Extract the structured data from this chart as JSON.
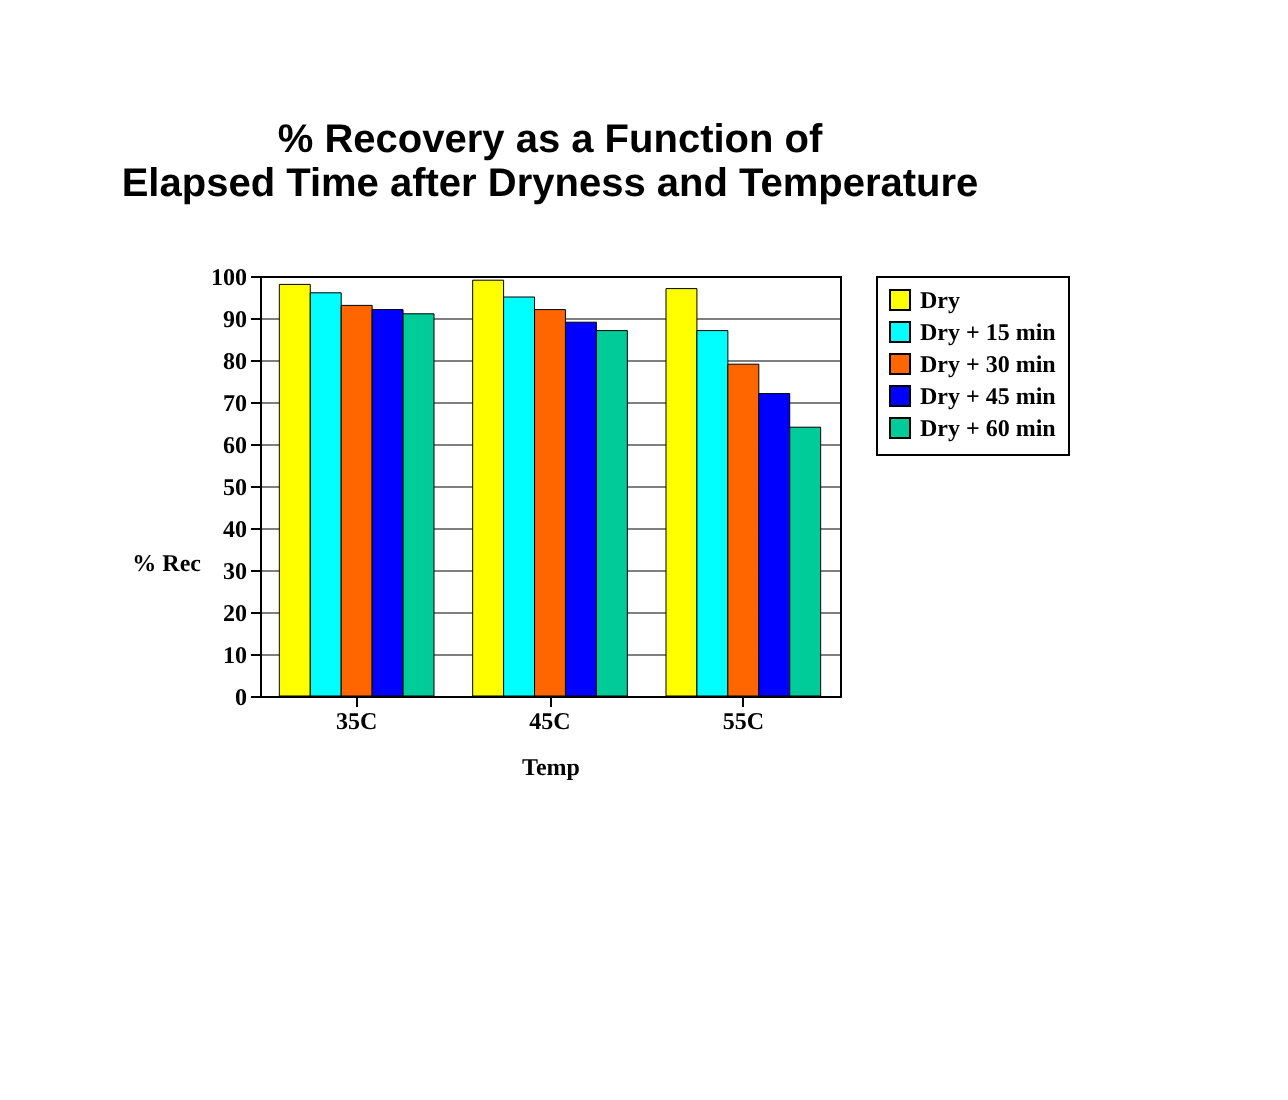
{
  "chart_data": {
    "type": "bar",
    "title": [
      "% Recovery as a Function of",
      "Elapsed Time after Dryness and Temperature"
    ],
    "xlabel": "Temp",
    "ylabel": "% Rec",
    "categories": [
      "35C",
      "45C",
      "55C"
    ],
    "series": [
      {
        "name": "Dry",
        "color": "#ffff00",
        "values": [
          98,
          99,
          97
        ]
      },
      {
        "name": "Dry + 15 min",
        "color": "#00ffff",
        "values": [
          96,
          95,
          87
        ]
      },
      {
        "name": "Dry + 30 min",
        "color": "#ff6600",
        "values": [
          93,
          92,
          79
        ]
      },
      {
        "name": "Dry + 45 min",
        "color": "#0000ff",
        "values": [
          92,
          89,
          72
        ]
      },
      {
        "name": "Dry + 60 min",
        "color": "#00cc99",
        "values": [
          91,
          87,
          64
        ]
      }
    ],
    "ylim": [
      0,
      100
    ],
    "yticks": [
      0,
      10,
      20,
      30,
      40,
      50,
      60,
      70,
      80,
      90,
      100
    ],
    "grid": "y",
    "legend": "right"
  }
}
